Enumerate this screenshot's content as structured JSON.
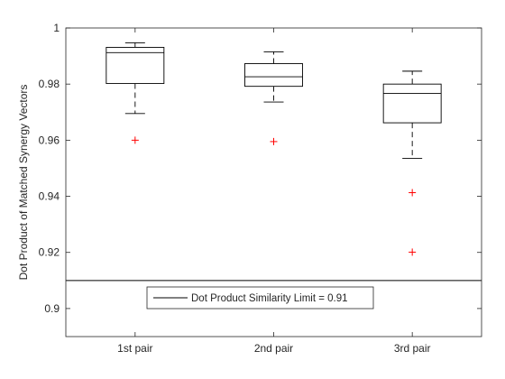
{
  "chart_data": {
    "type": "box",
    "categories": [
      "1st pair",
      "2nd pair",
      "3rd pair"
    ],
    "ylabel": "Dot Product of Matched Synergy Vectors",
    "xlabel": "",
    "title": "",
    "ylim": [
      0.89,
      1.0
    ],
    "yticks": [
      0.9,
      0.92,
      0.94,
      0.96,
      0.98,
      1
    ],
    "ytick_labels": [
      "0.9",
      "0.92",
      "0.94",
      "0.96",
      "0.98",
      "1"
    ],
    "grid": false,
    "boxes": [
      {
        "category": "1st pair",
        "whisker_low": 0.9695,
        "q1": 0.9802,
        "median": 0.9912,
        "q3": 0.9931,
        "whisker_high": 0.9947,
        "outliers": [
          0.96
        ]
      },
      {
        "category": "2nd pair",
        "whisker_low": 0.9736,
        "q1": 0.9792,
        "median": 0.9826,
        "q3": 0.9873,
        "whisker_high": 0.9915,
        "outliers": [
          0.9595
        ]
      },
      {
        "category": "3rd pair",
        "whisker_low": 0.9535,
        "q1": 0.9662,
        "median": 0.9767,
        "q3": 0.98,
        "whisker_high": 0.9846,
        "outliers": [
          0.9413,
          0.9201
        ]
      }
    ],
    "reference_line": {
      "value": 0.91
    },
    "legend": {
      "label": "Dot Product Similarity Limit = 0.91",
      "placement": "bottom-center"
    },
    "colors": {
      "box": "#000000",
      "median": "#000000",
      "whisker": "#000000",
      "outlier": "#ff0000",
      "axis": "#262626"
    }
  }
}
